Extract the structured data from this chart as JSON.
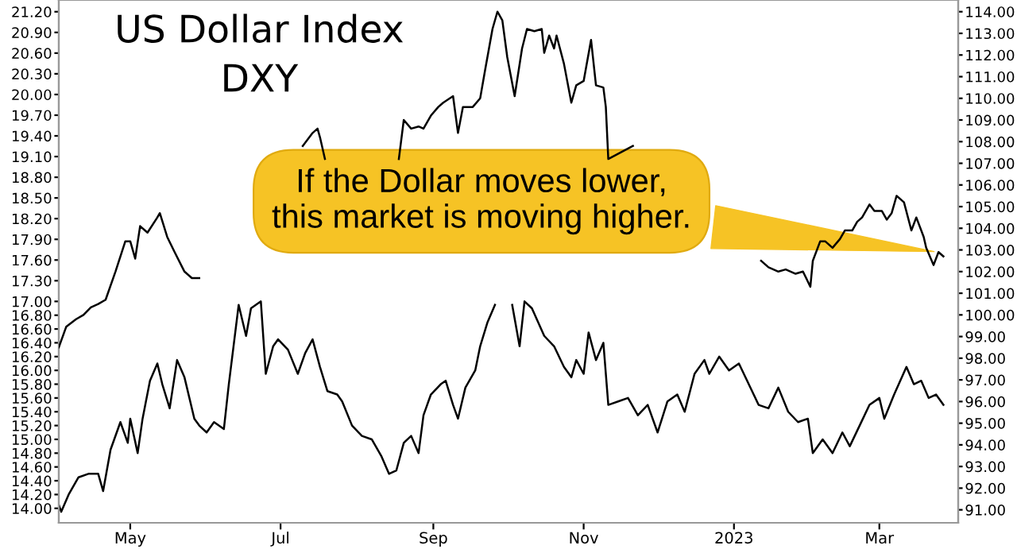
{
  "chart_data": {
    "type": "line",
    "xlim": [
      "2022-04-02",
      "2023-04-02"
    ],
    "xticks": [
      {
        "value": "2022-05-01",
        "label": "May"
      },
      {
        "value": "2022-07-01",
        "label": "Jul"
      },
      {
        "value": "2022-09-01",
        "label": "Sep"
      },
      {
        "value": "2022-11-01",
        "label": "Nov"
      },
      {
        "value": "2023-01-01",
        "label": "2023"
      },
      {
        "value": "2023-03-01",
        "label": "Mar"
      }
    ],
    "ylim": [
      13.79,
      21.37
    ],
    "yticks": [
      {
        "value": 14.0,
        "label": "14.00"
      },
      {
        "value": 14.2,
        "label": "14.20"
      },
      {
        "value": 14.4,
        "label": "14.40"
      },
      {
        "value": 14.6,
        "label": "14.60"
      },
      {
        "value": 14.8,
        "label": "14.80"
      },
      {
        "value": 15.0,
        "label": "15.00"
      },
      {
        "value": 15.2,
        "label": "15.20"
      },
      {
        "value": 15.4,
        "label": "15.40"
      },
      {
        "value": 15.6,
        "label": "15.60"
      },
      {
        "value": 15.8,
        "label": "15.80"
      },
      {
        "value": 16.0,
        "label": "16.00"
      },
      {
        "value": 16.2,
        "label": "16.20"
      },
      {
        "value": 16.4,
        "label": "16.40"
      },
      {
        "value": 16.6,
        "label": "16.60"
      },
      {
        "value": 16.8,
        "label": "16.80"
      },
      {
        "value": 17.0,
        "label": "17.00"
      },
      {
        "value": 17.3,
        "label": "17.30"
      },
      {
        "value": 17.6,
        "label": "17.60"
      },
      {
        "value": 17.9,
        "label": "17.90"
      },
      {
        "value": 18.2,
        "label": "18.20"
      },
      {
        "value": 18.5,
        "label": "18.50"
      },
      {
        "value": 18.8,
        "label": "18.80"
      },
      {
        "value": 19.1,
        "label": "19.10"
      },
      {
        "value": 19.4,
        "label": "19.40"
      },
      {
        "value": 19.7,
        "label": "19.70"
      },
      {
        "value": 20.0,
        "label": "20.00"
      },
      {
        "value": 20.3,
        "label": "20.30"
      },
      {
        "value": 20.6,
        "label": "20.60"
      },
      {
        "value": 20.9,
        "label": "20.90"
      },
      {
        "value": 21.2,
        "label": "21.20"
      }
    ],
    "y2lim": [
      90.4,
      114.54
    ],
    "y2ticks": [
      {
        "value": 91,
        "label": "91.00"
      },
      {
        "value": 92,
        "label": "92.00"
      },
      {
        "value": 93,
        "label": "93.00"
      },
      {
        "value": 94,
        "label": "94.00"
      },
      {
        "value": 95,
        "label": "95.00"
      },
      {
        "value": 96,
        "label": "96.00"
      },
      {
        "value": 97,
        "label": "97.00"
      },
      {
        "value": 98,
        "label": "98.00"
      },
      {
        "value": 99,
        "label": "99.00"
      },
      {
        "value": 100,
        "label": "100.00"
      },
      {
        "value": 101,
        "label": "101.00"
      },
      {
        "value": 102,
        "label": "102.00"
      },
      {
        "value": 103,
        "label": "103.00"
      },
      {
        "value": 104,
        "label": "104.00"
      },
      {
        "value": 105,
        "label": "105.00"
      },
      {
        "value": 106,
        "label": "106.00"
      },
      {
        "value": 107,
        "label": "107.00"
      },
      {
        "value": 108,
        "label": "108.00"
      },
      {
        "value": 109,
        "label": "109.00"
      },
      {
        "value": 110,
        "label": "110.00"
      },
      {
        "value": 111,
        "label": "111.00"
      },
      {
        "value": 112,
        "label": "112.00"
      },
      {
        "value": 113,
        "label": "113.00"
      },
      {
        "value": 114,
        "label": "114.00"
      }
    ],
    "grid": false,
    "legend": false,
    "marker": "none",
    "line_style": "solid",
    "annotations": [
      "If the Dollar moves lower,\nthis market is moving higher."
    ],
    "series": [
      {
        "name": "US Dollar Index\nDXY",
        "color": "#000000",
        "axis": "y2",
        "x": [
          "2022-04-02",
          "2022-04-05",
          "2022-04-09",
          "2022-04-12",
          "2022-04-15",
          "2022-04-18",
          "2022-04-21",
          "2022-04-25",
          "2022-04-29",
          "2022-05-01",
          "2022-05-03",
          "2022-05-05",
          "2022-05-08",
          "2022-05-12",
          "2022-05-13",
          "2022-05-16",
          "2022-05-19",
          "2022-05-23",
          "2022-05-26",
          "2022-05-29",
          "2022-06-10",
          "2022-07-10",
          "2022-07-14",
          "2022-07-16",
          "2022-07-17",
          "2022-07-19",
          "2022-08-05",
          "2022-08-18",
          "2022-08-20",
          "2022-08-23",
          "2022-08-26",
          "2022-08-28",
          "2022-08-31",
          "2022-09-03",
          "2022-09-05",
          "2022-09-09",
          "2022-09-11",
          "2022-09-13",
          "2022-09-17",
          "2022-09-20",
          "2022-09-22",
          "2022-09-25",
          "2022-09-27",
          "2022-09-29",
          "2022-10-01",
          "2022-10-04",
          "2022-10-07",
          "2022-10-09",
          "2022-10-12",
          "2022-10-15",
          "2022-10-16",
          "2022-10-18",
          "2022-10-20",
          "2022-10-21",
          "2022-10-24",
          "2022-10-27",
          "2022-10-29",
          "2022-11-01",
          "2022-11-04",
          "2022-11-06",
          "2022-11-09",
          "2022-11-10",
          "2022-11-11",
          "2022-11-21",
          "2022-12-05",
          "2023-01-12",
          "2023-01-15",
          "2023-01-19",
          "2023-01-22",
          "2023-01-26",
          "2023-01-29",
          "2023-02-01",
          "2023-02-02",
          "2023-02-05",
          "2023-02-07",
          "2023-02-10",
          "2023-02-13",
          "2023-02-15",
          "2023-02-18",
          "2023-02-20",
          "2023-02-22",
          "2023-02-25",
          "2023-02-27",
          "2023-03-02",
          "2023-03-04",
          "2023-03-06",
          "2023-03-08",
          "2023-03-11",
          "2023-03-14",
          "2023-03-16",
          "2023-03-19",
          "2023-03-20",
          "2023-03-23",
          "2023-03-25",
          "2023-03-27"
        ],
        "values": [
          98.5,
          99.45,
          99.8,
          100.0,
          100.35,
          100.5,
          100.7,
          102.0,
          103.4,
          103.4,
          102.6,
          104.1,
          103.8,
          104.5,
          104.7,
          103.6,
          102.9,
          102.0,
          101.7,
          101.7,
          null,
          107.8,
          108.4,
          108.6,
          108.2,
          107.2,
          null,
          107.2,
          109.0,
          108.6,
          108.7,
          108.6,
          109.2,
          109.6,
          109.8,
          110.1,
          108.4,
          109.6,
          109.6,
          110.0,
          111.3,
          113.2,
          114.0,
          113.6,
          111.9,
          110.1,
          112.3,
          113.2,
          113.1,
          113.2,
          112.1,
          112.9,
          112.3,
          112.9,
          111.6,
          109.8,
          110.6,
          110.8,
          112.7,
          110.6,
          110.5,
          109.6,
          107.2,
          107.8,
          null,
          102.5,
          102.2,
          102.0,
          102.1,
          101.9,
          102.0,
          101.3,
          102.5,
          103.4,
          103.4,
          103.1,
          103.5,
          103.9,
          103.9,
          104.3,
          104.5,
          105.1,
          104.8,
          104.8,
          104.4,
          104.7,
          105.5,
          105.2,
          103.9,
          104.5,
          103.6,
          103.1,
          102.3,
          102.9,
          102.7
        ]
      },
      {
        "color": "#000000",
        "x": [
          "2022-04-02",
          "2022-04-03",
          "2022-04-06",
          "2022-04-10",
          "2022-04-14",
          "2022-04-18",
          "2022-04-20",
          "2022-04-23",
          "2022-04-27",
          "2022-04-30",
          "2022-05-01",
          "2022-05-04",
          "2022-05-06",
          "2022-05-09",
          "2022-05-12",
          "2022-05-14",
          "2022-05-17",
          "2022-05-20",
          "2022-05-23",
          "2022-05-27",
          "2022-05-29",
          "2022-06-01",
          "2022-06-04",
          "2022-06-08",
          "2022-06-10",
          "2022-06-14",
          "2022-06-17",
          "2022-06-19",
          "2022-06-23",
          "2022-06-25",
          "2022-06-28",
          "2022-06-30",
          "2022-07-04",
          "2022-07-08",
          "2022-07-11",
          "2022-07-14",
          "2022-07-17",
          "2022-07-20",
          "2022-07-24",
          "2022-07-26",
          "2022-07-30",
          "2022-08-03",
          "2022-08-07",
          "2022-08-11",
          "2022-08-14",
          "2022-08-17",
          "2022-08-20",
          "2022-08-23",
          "2022-08-26",
          "2022-08-28",
          "2022-08-31",
          "2022-09-04",
          "2022-09-06",
          "2022-09-09",
          "2022-09-11",
          "2022-09-14",
          "2022-09-18",
          "2022-09-20",
          "2022-09-23",
          "2022-09-26",
          "2022-09-29",
          "2022-10-03",
          "2022-10-06",
          "2022-10-08",
          "2022-10-11",
          "2022-10-16",
          "2022-10-20",
          "2022-10-24",
          "2022-10-27",
          "2022-10-29",
          "2022-11-01",
          "2022-11-03",
          "2022-11-06",
          "2022-11-09",
          "2022-11-11",
          "2022-11-15",
          "2022-11-19",
          "2022-11-23",
          "2022-11-27",
          "2022-12-01",
          "2022-12-05",
          "2022-12-09",
          "2022-12-12",
          "2022-12-16",
          "2022-12-20",
          "2022-12-22",
          "2022-12-26",
          "2022-12-30",
          "2023-01-03",
          "2023-01-07",
          "2023-01-11",
          "2023-01-15",
          "2023-01-19",
          "2023-01-23",
          "2023-01-27",
          "2023-01-31",
          "2023-02-02",
          "2023-02-06",
          "2023-02-10",
          "2023-02-14",
          "2023-02-17",
          "2023-02-21",
          "2023-02-25",
          "2023-03-01",
          "2023-03-03",
          "2023-03-07",
          "2023-03-12",
          "2023-03-15",
          "2023-03-18",
          "2023-03-21",
          "2023-03-24",
          "2023-03-27"
        ],
        "values": [
          14.05,
          13.95,
          14.2,
          14.45,
          14.5,
          14.5,
          14.25,
          14.85,
          15.25,
          14.95,
          15.3,
          14.8,
          15.3,
          15.85,
          16.1,
          15.8,
          15.45,
          16.15,
          15.9,
          15.3,
          15.2,
          15.1,
          15.25,
          15.15,
          15.8,
          16.95,
          16.5,
          16.9,
          17.0,
          15.95,
          16.35,
          16.45,
          16.3,
          15.95,
          16.25,
          16.45,
          16.05,
          15.7,
          15.65,
          15.55,
          15.2,
          15.05,
          15.0,
          14.75,
          14.5,
          14.55,
          14.95,
          15.05,
          14.8,
          15.35,
          15.65,
          15.8,
          15.85,
          15.5,
          15.3,
          15.75,
          16.0,
          16.35,
          16.7,
          16.95,
          null,
          16.95,
          16.35,
          17.0,
          16.9,
          16.5,
          16.35,
          16.05,
          15.9,
          16.15,
          15.95,
          16.55,
          16.15,
          16.4,
          15.5,
          15.55,
          15.6,
          15.35,
          15.5,
          15.1,
          15.55,
          15.65,
          15.4,
          15.95,
          16.15,
          15.95,
          16.2,
          16.0,
          16.1,
          15.8,
          15.5,
          15.45,
          15.75,
          15.4,
          15.25,
          15.3,
          14.8,
          15.0,
          14.8,
          15.1,
          14.9,
          15.2,
          15.5,
          15.6,
          15.3,
          15.65,
          16.05,
          15.8,
          15.85,
          15.6,
          15.65,
          15.5
        ]
      }
    ]
  }
}
